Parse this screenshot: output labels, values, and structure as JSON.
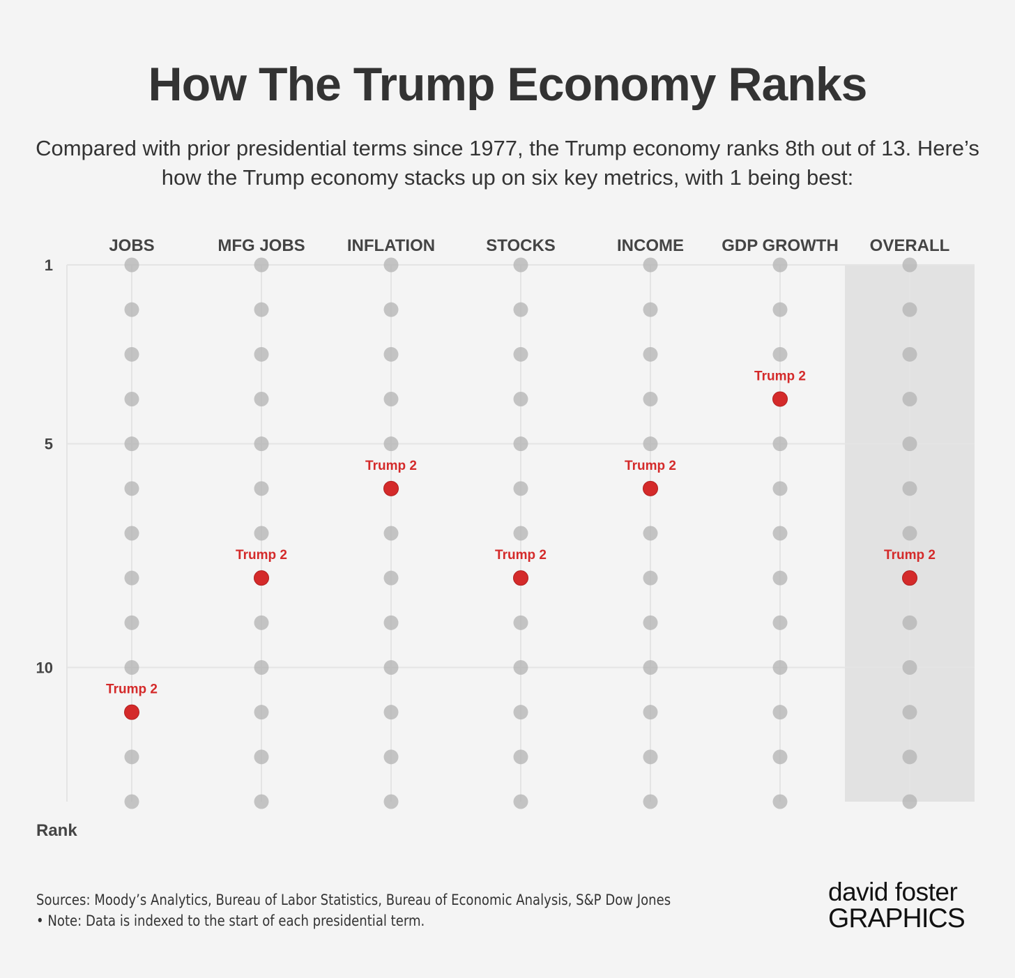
{
  "title": "How The Trump Economy Ranks",
  "subtitle": "Compared with prior presidential terms since 1977, the Trump economy ranks 8th out of 13. Here’s how the Trump economy stacks up on six key metrics, with 1 being best:",
  "footer": {
    "sources": "Sources: Moody’s Analytics, Bureau of Labor Statistics, Bureau of Economic Analysis, S&P Dow Jones",
    "note": "• Note: Data is indexed to the start of each presidential term."
  },
  "logo": {
    "line1": "david foster",
    "line2": "GRAPHICS"
  },
  "colors": {
    "highlight": "#d42a2a",
    "dot": "#bdbdbd",
    "overall_band": "#e2e2e2"
  },
  "chart_data": {
    "type": "scatter",
    "title": "How The Trump Economy Ranks",
    "ylabel": "Rank",
    "ylim": [
      1,
      13
    ],
    "yticks": [
      1,
      5,
      10
    ],
    "categories": [
      "JOBS",
      "MFG JOBS",
      "INFLATION",
      "STOCKS",
      "INCOME",
      "GDP GROWTH",
      "OVERALL"
    ],
    "ranks_per_category": 13,
    "highlight_label": "Trump 2",
    "series": [
      {
        "name": "Trump 2",
        "values": [
          11,
          8,
          6,
          8,
          6,
          4,
          8
        ]
      }
    ],
    "shaded_category": "OVERALL"
  }
}
